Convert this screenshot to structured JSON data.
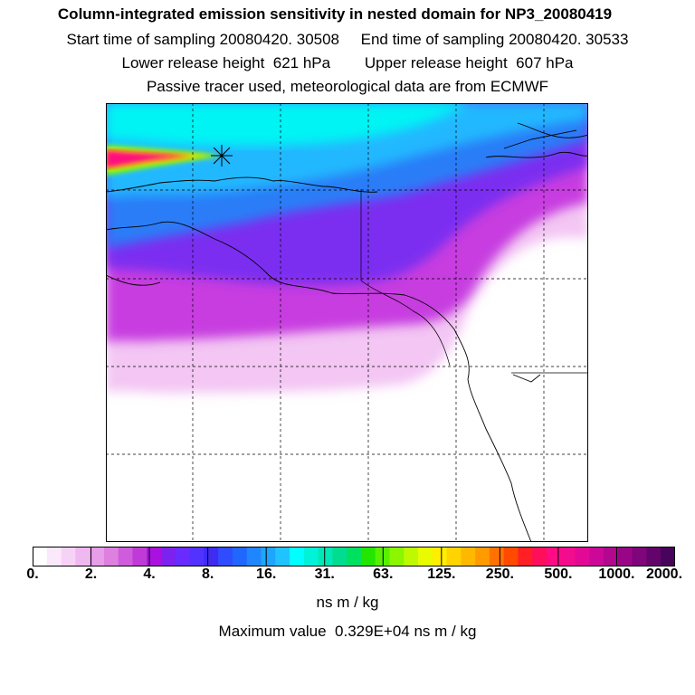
{
  "header": {
    "title": "Column-integrated emission sensitivity in nested domain for NP3_20080419",
    "sampling_line": "Start time of sampling 20080420. 30508     End time of sampling 20080420. 30533",
    "release_line": "Lower release height  621 hPa        Upper release height  607 hPa",
    "tracer_line": "Passive tracer used, meteorological data are from ECMWF"
  },
  "map": {
    "field": "column-integrated emission sensitivity",
    "grid": "dashed graticule",
    "release_marker": "star-icon"
  },
  "colorbar": {
    "tick_labels": [
      "0.",
      "2.",
      "4.",
      "8.",
      "16.",
      "31.",
      "63.",
      "125.",
      "250.",
      "500.",
      "1000.",
      "2000."
    ],
    "colors": [
      "#ffffff",
      "#fbe8fb",
      "#f7d2f7",
      "#f0b8f0",
      "#e79de8",
      "#dd80e0",
      "#cf5cdc",
      "#c03ad7",
      "#aa11e0",
      "#7d22ee",
      "#6a2bff",
      "#5232ff",
      "#3f2bf2",
      "#2f4dff",
      "#2066ff",
      "#1f86ff",
      "#1ea5ff",
      "#20c3ff",
      "#00ffff",
      "#00f2d8",
      "#00e8b6",
      "#00dd90",
      "#00e060",
      "#22e600",
      "#58f000",
      "#8cf500",
      "#bdf900",
      "#e9fb00",
      "#ffee00",
      "#ffd400",
      "#ffb800",
      "#ff9a00",
      "#ff7200",
      "#ff4a00",
      "#ff1f24",
      "#ff0e5a",
      "#ff0c84",
      "#f20c8e",
      "#e20a95",
      "#cc0898",
      "#b2078f",
      "#980586",
      "#7e057a",
      "#63046a",
      "#48035a"
    ],
    "units": "ns m / kg"
  },
  "footer": {
    "max_value": "Maximum value  0.329E+04 ns m / kg"
  }
}
